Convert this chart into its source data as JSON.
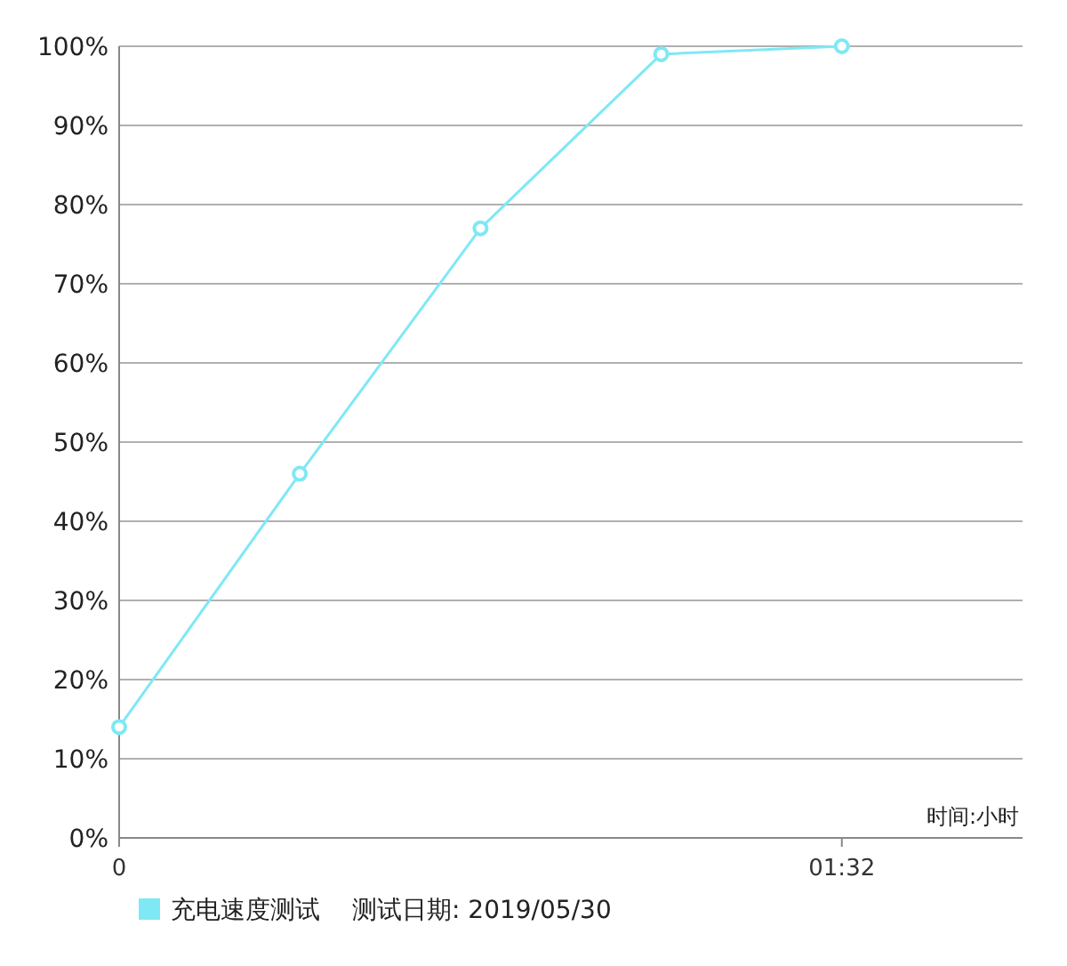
{
  "chart_data": {
    "type": "line",
    "xlabel": "时间:小时",
    "x": [
      0,
      0.3833,
      0.7667,
      1.15,
      1.5333
    ],
    "series": [
      {
        "name": "充电速度测试",
        "color": "#7fe8f5",
        "values": [
          14,
          46,
          77,
          99,
          100
        ]
      }
    ],
    "xlim": [
      0,
      1.9167
    ],
    "xticks": [
      {
        "value": 0,
        "label": "0"
      },
      {
        "value": 1.5333,
        "label": "01:32"
      }
    ],
    "ylim": [
      0,
      100
    ],
    "yticks": [
      {
        "value": 0,
        "label": "0%"
      },
      {
        "value": 10,
        "label": "10%"
      },
      {
        "value": 20,
        "label": "20%"
      },
      {
        "value": 30,
        "label": "30%"
      },
      {
        "value": 40,
        "label": "40%"
      },
      {
        "value": 50,
        "label": "50%"
      },
      {
        "value": 60,
        "label": "60%"
      },
      {
        "value": 70,
        "label": "70%"
      },
      {
        "value": 80,
        "label": "80%"
      },
      {
        "value": 90,
        "label": "90%"
      },
      {
        "value": 100,
        "label": "100%"
      }
    ],
    "grid": "y",
    "legend": "bottom",
    "marker": "circle",
    "line_style": "solid",
    "annotations": [
      "测试日期: 2019/05/30"
    ]
  }
}
